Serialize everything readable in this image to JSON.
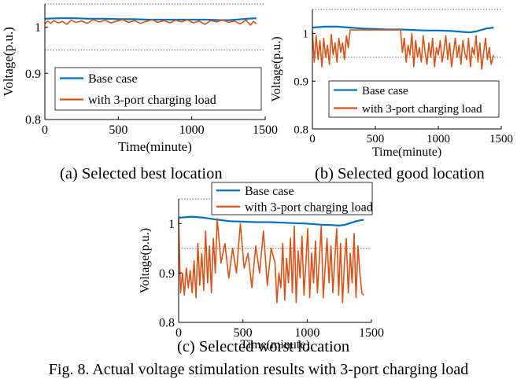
{
  "figure": {
    "caption": "Fig. 8. Actual voltage stimulation results with 3-port charging load",
    "sub_captions": [
      "(a) Selected best location",
      "(b) Selected good location",
      "(c) Selected worst location"
    ]
  },
  "colors": {
    "base": "#0072BD",
    "load": "#D95319",
    "limit": "#666666"
  },
  "chart_data": [
    {
      "type": "line",
      "xlabel": "Time(minute)",
      "ylabel": "Voltage(p.u.)",
      "xlim": [
        0,
        1500
      ],
      "ylim": [
        0.8,
        1.05
      ],
      "xticks": [
        0,
        500,
        1000,
        1500
      ],
      "yticks": [
        0.8,
        0.9,
        1
      ],
      "limits": [
        0.95,
        1.05
      ],
      "grid": false,
      "legend_position": "middle-left",
      "series": [
        {
          "name": "Base case",
          "x": [
            0,
            100,
            200,
            300,
            400,
            500,
            600,
            700,
            800,
            900,
            1000,
            1100,
            1200,
            1250,
            1300,
            1380,
            1440
          ],
          "y": [
            1.018,
            1.019,
            1.019,
            1.018,
            1.018,
            1.017,
            1.017,
            1.016,
            1.016,
            1.016,
            1.016,
            1.016,
            1.015,
            1.015,
            1.016,
            1.018,
            1.019
          ]
        },
        {
          "name": "with 3-port charging load",
          "x": [
            0,
            20,
            40,
            60,
            90,
            120,
            150,
            180,
            210,
            250,
            290,
            330,
            370,
            410,
            450,
            490,
            530,
            570,
            610,
            650,
            690,
            730,
            770,
            810,
            850,
            890,
            930,
            970,
            1010,
            1050,
            1090,
            1130,
            1170,
            1210,
            1250,
            1290,
            1330,
            1370,
            1400,
            1420,
            1440
          ],
          "y": [
            1.007,
            1.013,
            1.008,
            1.014,
            1.009,
            1.012,
            1.006,
            1.015,
            1.01,
            1.013,
            1.008,
            1.016,
            1.011,
            1.015,
            1.009,
            1.013,
            1.016,
            1.01,
            1.014,
            1.008,
            1.012,
            1.016,
            1.01,
            1.014,
            1.009,
            1.015,
            1.011,
            1.016,
            1.009,
            1.013,
            1.006,
            1.014,
            1.011,
            1.016,
            1.01,
            1.013,
            1.007,
            1.015,
            1.004,
            1.012,
            1.007
          ]
        }
      ]
    },
    {
      "type": "line",
      "xlabel": "Time(minute)",
      "ylabel": "Voltage(p.u.)",
      "xlim": [
        0,
        1500
      ],
      "ylim": [
        0.8,
        1.05
      ],
      "xticks": [
        0,
        500,
        1000,
        1500
      ],
      "yticks": [
        0.8,
        0.9,
        1
      ],
      "limits": [
        0.95,
        1.05
      ],
      "grid": false,
      "legend_position": "bottom-center",
      "series": [
        {
          "name": "Base case",
          "x": [
            0,
            100,
            200,
            300,
            400,
            500,
            600,
            700,
            800,
            900,
            1000,
            1100,
            1200,
            1250,
            1300,
            1380,
            1440
          ],
          "y": [
            1.012,
            1.014,
            1.014,
            1.012,
            1.01,
            1.009,
            1.008,
            1.008,
            1.007,
            1.006,
            1.006,
            1.005,
            1.003,
            1.002,
            1.004,
            1.01,
            1.012
          ]
        },
        {
          "name": "with 3-port charging load",
          "x": [
            0,
            15,
            30,
            45,
            60,
            75,
            90,
            105,
            120,
            135,
            150,
            165,
            180,
            195,
            210,
            225,
            240,
            255,
            270,
            285,
            300,
            700,
            715,
            730,
            745,
            760,
            775,
            790,
            805,
            820,
            835,
            850,
            865,
            880,
            895,
            910,
            925,
            940,
            955,
            970,
            985,
            1000,
            1015,
            1030,
            1045,
            1060,
            1075,
            1090,
            1105,
            1120,
            1135,
            1150,
            1165,
            1180,
            1195,
            1210,
            1225,
            1240,
            1255,
            1270,
            1285,
            1300,
            1315,
            1330,
            1345,
            1360,
            1375,
            1390,
            1405,
            1420,
            1440
          ],
          "y": [
            1.006,
            0.94,
            0.995,
            0.945,
            0.985,
            0.93,
            0.99,
            0.95,
            0.975,
            0.935,
            0.998,
            0.955,
            0.98,
            0.94,
            0.99,
            0.96,
            0.98,
            0.945,
            0.995,
            0.97,
            1.007,
            1.007,
            0.96,
            0.99,
            0.94,
            0.975,
            0.955,
            1.0,
            0.93,
            0.985,
            0.95,
            0.97,
            0.94,
            0.995,
            0.96,
            0.935,
            0.98,
            0.95,
            0.99,
            0.93,
            0.97,
            0.955,
            0.985,
            0.94,
            0.965,
            0.995,
            0.945,
            0.98,
            0.93,
            0.96,
            0.99,
            0.95,
            0.975,
            0.935,
            0.985,
            0.96,
            0.945,
            0.99,
            0.93,
            0.97,
            0.955,
            0.995,
            0.94,
            0.98,
            0.925,
            0.96,
            0.99,
            0.945,
            0.97,
            0.935,
            0.955
          ]
        }
      ]
    },
    {
      "type": "line",
      "xlabel": "Time(minute)",
      "ylabel": "Voltage(p.u.)",
      "xlim": [
        0,
        1500
      ],
      "ylim": [
        0.8,
        1.05
      ],
      "xticks": [
        0,
        500,
        1000,
        1500
      ],
      "yticks": [
        0.8,
        0.9,
        1
      ],
      "limits": [
        0.95,
        1.05
      ],
      "grid": false,
      "legend_position": "top-right-outside",
      "series": [
        {
          "name": "Base case",
          "x": [
            0,
            100,
            200,
            300,
            400,
            500,
            600,
            700,
            800,
            900,
            1000,
            1100,
            1200,
            1250,
            1300,
            1380,
            1440
          ],
          "y": [
            1.012,
            1.014,
            1.012,
            1.008,
            1.005,
            1.004,
            1.003,
            1.003,
            1.002,
            1.001,
            1.0,
            0.998,
            0.997,
            0.996,
            0.998,
            1.005,
            1.008
          ]
        },
        {
          "name": "with 3-port charging load",
          "x": [
            0,
            15,
            30,
            45,
            60,
            75,
            90,
            105,
            120,
            135,
            150,
            165,
            180,
            195,
            210,
            225,
            240,
            255,
            270,
            285,
            300,
            330,
            360,
            390,
            420,
            450,
            480,
            510,
            540,
            570,
            600,
            630,
            660,
            690,
            720,
            750,
            765,
            780,
            795,
            810,
            825,
            840,
            855,
            870,
            885,
            900,
            915,
            930,
            945,
            960,
            975,
            990,
            1005,
            1020,
            1035,
            1050,
            1065,
            1080,
            1095,
            1110,
            1125,
            1140,
            1155,
            1170,
            1185,
            1200,
            1215,
            1230,
            1245,
            1260,
            1275,
            1290,
            1305,
            1320,
            1335,
            1350,
            1365,
            1380,
            1395,
            1410,
            1425,
            1440
          ],
          "y": [
            1.01,
            0.86,
            0.9,
            0.855,
            0.91,
            0.87,
            0.905,
            0.86,
            0.925,
            0.85,
            0.96,
            0.875,
            0.94,
            0.865,
            0.985,
            0.88,
            0.955,
            0.86,
            0.97,
            0.9,
            1.01,
            0.92,
            0.96,
            0.89,
            0.95,
            0.9,
            1.0,
            0.91,
            0.94,
            0.87,
            0.955,
            0.9,
            0.985,
            0.875,
            0.95,
            0.92,
            0.84,
            0.9,
            0.87,
            0.96,
            0.845,
            0.93,
            0.88,
            0.97,
            0.86,
            0.995,
            0.84,
            0.945,
            0.89,
            0.975,
            0.855,
            0.92,
            0.99,
            0.85,
            0.94,
            0.88,
            0.965,
            0.86,
            0.93,
            0.995,
            0.85,
            0.91,
            0.97,
            0.88,
            0.955,
            0.86,
            0.93,
            0.99,
            0.855,
            0.96,
            0.84,
            0.92,
            0.97,
            0.86,
            0.94,
            0.88,
            0.98,
            0.85,
            0.955,
            0.9,
            0.86,
            0.855
          ]
        }
      ]
    }
  ]
}
